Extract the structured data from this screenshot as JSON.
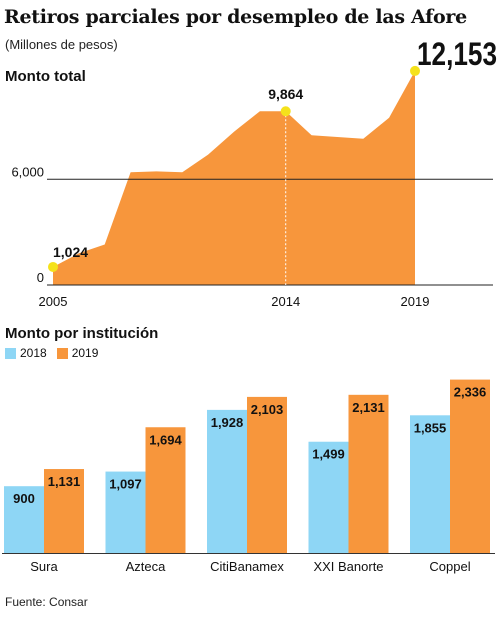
{
  "title": "Retiros parciales por desempleo de las Afore",
  "subtitle": "(Millones de pesos)",
  "source": "Fuente: Consar",
  "colors": {
    "orange": "#F7963C",
    "blue": "#8ED6F5",
    "marker": "#F5E21B",
    "grid": "#222222"
  },
  "chart_data": [
    {
      "type": "area",
      "title": "Monto total",
      "x": [
        2005,
        2006,
        2007,
        2008,
        2009,
        2010,
        2011,
        2012,
        2013,
        2014,
        2015,
        2016,
        2017,
        2018,
        2019
      ],
      "values": [
        1024,
        1800,
        2300,
        6400,
        6450,
        6400,
        7400,
        8700,
        9864,
        9864,
        8500,
        8400,
        8300,
        9500,
        12153
      ],
      "ylim": [
        0,
        13000
      ],
      "yticks": [
        0,
        6000
      ],
      "ytick_labels": [
        "0",
        "6,000"
      ],
      "xtick_labels": [
        "2005",
        "2014",
        "2019"
      ],
      "annotations": [
        {
          "x": 2005,
          "label": "1,024"
        },
        {
          "x": 2014,
          "label": "9,864"
        },
        {
          "x": 2019,
          "label": "12,153"
        }
      ]
    },
    {
      "type": "bar",
      "title": "Monto por institución",
      "categories": [
        "Sura",
        "Azteca",
        "CitiBanamex",
        "XXI Banorte",
        "Coppel"
      ],
      "series": [
        {
          "name": "2018",
          "values": [
            900,
            1097,
            1928,
            1499,
            1855
          ],
          "labels": [
            "900",
            "1,097",
            "1,928",
            "1,499",
            "1,855"
          ]
        },
        {
          "name": "2019",
          "values": [
            1131,
            1694,
            2103,
            2131,
            2336
          ],
          "labels": [
            "1,131",
            "1,694",
            "2,103",
            "2,131",
            "2,336"
          ]
        }
      ],
      "ylim": [
        0,
        2600
      ]
    }
  ]
}
